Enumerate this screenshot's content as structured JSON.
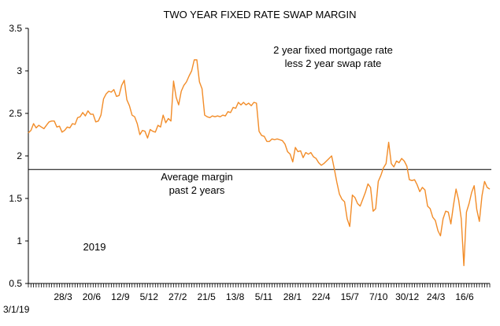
{
  "chart_data": {
    "type": "line",
    "title": "TWO YEAR FIXED RATE SWAP MARGIN",
    "xlabel": "",
    "ylabel": "",
    "ylim": [
      0.5,
      3.5
    ],
    "yticks": [
      0.5,
      1,
      1.5,
      2,
      2.5,
      3,
      3.5
    ],
    "ytick_labels": [
      "0.5",
      "1",
      "1.5",
      "2",
      "2.5",
      "3",
      "3.5"
    ],
    "xtick_labels": [
      "3/1/19",
      "28/3",
      "20/6",
      "12/9",
      "5/12",
      "27/2",
      "21/5",
      "13/8",
      "5/11",
      "28/1",
      "22/4",
      "15/7",
      "7/10",
      "30/12",
      "24/3",
      "16/6"
    ],
    "grid": false,
    "average_line": 1.84,
    "annotations": {
      "series_note_line1": "2 year fixed mortgage rate",
      "series_note_line2": "less 2 year swap rate",
      "average_note_line1": "Average margin",
      "average_note_line2": "past 2 years",
      "year_label": "2019"
    },
    "colors": {
      "series": "#F28C28",
      "average": "#000000",
      "axis": "#000000"
    },
    "series": [
      {
        "values": [
          2.27,
          2.3,
          2.38,
          2.33,
          2.36,
          2.34,
          2.32,
          2.36,
          2.4,
          2.41,
          2.41,
          2.34,
          2.35,
          2.28,
          2.3,
          2.34,
          2.33,
          2.38,
          2.37,
          2.45,
          2.46,
          2.51,
          2.47,
          2.53,
          2.49,
          2.49,
          2.4,
          2.41,
          2.48,
          2.67,
          2.73,
          2.76,
          2.75,
          2.78,
          2.7,
          2.71,
          2.83,
          2.89,
          2.66,
          2.59,
          2.48,
          2.46,
          2.38,
          2.25,
          2.3,
          2.29,
          2.21,
          2.31,
          2.29,
          2.28,
          2.36,
          2.34,
          2.48,
          2.39,
          2.44,
          2.41,
          2.88,
          2.69,
          2.6,
          2.76,
          2.83,
          2.87,
          2.94,
          3.0,
          3.13,
          3.13,
          2.87,
          2.79,
          2.48,
          2.46,
          2.45,
          2.47,
          2.46,
          2.47,
          2.46,
          2.48,
          2.47,
          2.52,
          2.51,
          2.57,
          2.56,
          2.63,
          2.6,
          2.63,
          2.6,
          2.62,
          2.59,
          2.63,
          2.62,
          2.29,
          2.24,
          2.23,
          2.17,
          2.17,
          2.2,
          2.19,
          2.2,
          2.19,
          2.18,
          2.14,
          2.05,
          2.02,
          1.93,
          2.1,
          2.05,
          2.06,
          1.98,
          2.04,
          2.02,
          2.04,
          1.99,
          1.97,
          1.92,
          1.89,
          1.91,
          1.94,
          1.97,
          2.0,
          1.85,
          1.69,
          1.55,
          1.49,
          1.46,
          1.26,
          1.17,
          1.54,
          1.51,
          1.44,
          1.41,
          1.49,
          1.57,
          1.67,
          1.63,
          1.35,
          1.38,
          1.7,
          1.77,
          1.86,
          1.91,
          2.16,
          1.91,
          1.87,
          1.94,
          1.92,
          1.97,
          1.94,
          1.88,
          1.72,
          1.71,
          1.72,
          1.66,
          1.58,
          1.63,
          1.6,
          1.41,
          1.38,
          1.28,
          1.24,
          1.12,
          1.06,
          1.26,
          1.35,
          1.34,
          1.2,
          1.42,
          1.61,
          1.48,
          1.26,
          0.71,
          1.34,
          1.44,
          1.57,
          1.65,
          1.37,
          1.23,
          1.53,
          1.7,
          1.63,
          1.61
        ]
      }
    ]
  }
}
